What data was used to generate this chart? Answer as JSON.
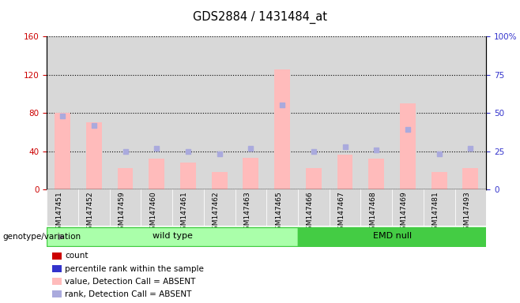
{
  "title": "GDS2884 / 1431484_at",
  "samples": [
    "GSM147451",
    "GSM147452",
    "GSM147459",
    "GSM147460",
    "GSM147461",
    "GSM147462",
    "GSM147463",
    "GSM147465",
    "GSM147466",
    "GSM147467",
    "GSM147468",
    "GSM147469",
    "GSM147481",
    "GSM147493"
  ],
  "wild_type_indices": [
    0,
    1,
    2,
    3,
    4,
    5,
    6,
    7
  ],
  "emd_null_indices": [
    8,
    9,
    10,
    11,
    12,
    13
  ],
  "absent_value": [
    80,
    70,
    22,
    32,
    28,
    18,
    33,
    125,
    22,
    36,
    32,
    90,
    18,
    22
  ],
  "absent_rank": [
    48,
    42,
    25,
    27,
    25,
    23,
    27,
    55,
    25,
    28,
    26,
    39,
    23,
    27
  ],
  "ylim_left": [
    0,
    160
  ],
  "ylim_right": [
    0,
    100
  ],
  "yticks_left": [
    0,
    40,
    80,
    120,
    160
  ],
  "yticks_right": [
    0,
    25,
    50,
    75,
    100
  ],
  "left_tick_color": "#cc0000",
  "right_tick_color": "#3333cc",
  "bar_color_absent": "#ffbbbb",
  "dot_color_absent": "#aaaadd",
  "group_color_light": "#aaffaa",
  "group_color_dark": "#44cc44",
  "legend_items": [
    {
      "label": "count",
      "color": "#cc0000"
    },
    {
      "label": "percentile rank within the sample",
      "color": "#3333cc"
    },
    {
      "label": "value, Detection Call = ABSENT",
      "color": "#ffbbbb"
    },
    {
      "label": "rank, Detection Call = ABSENT",
      "color": "#aaaadd"
    }
  ]
}
